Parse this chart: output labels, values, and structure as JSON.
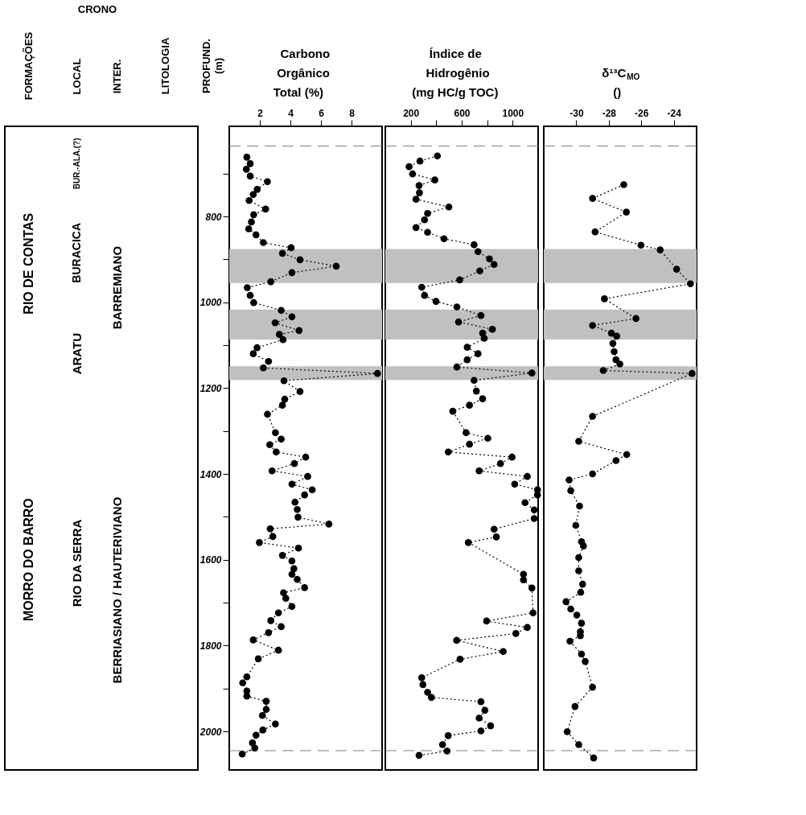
{
  "chart_data": [
    {
      "type": "other",
      "annotations": [
        "FORMAÇÕES",
        "CRONO",
        "LOCAL",
        "INTER.",
        "LITOLOGIA",
        "RIO DE CONTAS",
        "MORRO DO BARRO",
        "BUR.-ALA.(?)",
        "BURACICA",
        "ARATU",
        "RIO DA SERRA",
        "BARREMIANO",
        "BERRIASIANO / HAUTERIVIANO"
      ]
    },
    {
      "type": "line",
      "xlabel": "Carbono\nOrgânico\nTotal (%)",
      "xlim": [
        0,
        10
      ],
      "xticks": [
        2,
        4,
        6,
        8
      ],
      "ylim": [
        2090,
        590
      ],
      "ylabel": "PROFUND.\n(m)",
      "yticks": [
        {
          "value": 700,
          "label": null
        },
        800,
        {
          "value": 900,
          "label": null
        },
        1000,
        {
          "value": 1100,
          "label": null
        },
        1200,
        {
          "value": 1300,
          "label": null
        },
        1400,
        {
          "value": 1500,
          "label": null
        },
        1600,
        {
          "value": 1700,
          "label": null
        },
        1800,
        {
          "value": 1900,
          "label": null
        },
        2000
      ],
      "marker": "circle",
      "line_style": "dotted",
      "bands": [
        {
          "axis": "y",
          "from": 876,
          "to": 955,
          "color": "#c0c0c0"
        },
        {
          "axis": "y",
          "from": 1017,
          "to": 1087,
          "color": "#c0c0c0"
        },
        {
          "axis": "y",
          "from": 1149,
          "to": 1181,
          "color": "#c0c0c0"
        }
      ],
      "ref_lines": [
        {
          "axis": "y",
          "value": 636,
          "color": "#808080",
          "line_style": "dashed"
        },
        {
          "axis": "y",
          "value": 2045,
          "color": "#808080",
          "line_style": "dashed"
        }
      ],
      "series": [
        {
          "color": "#000000",
          "x": [
            1.15,
            1.37,
            1.12,
            1.37,
            2.5,
            1.83,
            1.57,
            1.3,
            2.38,
            1.6,
            1.45,
            1.27,
            1.75,
            2.23,
            4.05,
            3.48,
            4.63,
            7.0,
            4.1,
            2.72,
            1.18,
            1.37,
            1.6,
            3.4,
            4.1,
            3.0,
            4.57,
            3.28,
            3.52,
            1.82,
            1.57,
            2.57,
            2.23,
            9.7,
            3.58,
            4.63,
            3.63,
            3.48,
            2.5,
            3.02,
            3.4,
            2.65,
            3.07,
            5.0,
            4.26,
            2.8,
            5.13,
            4.1,
            5.43,
            4.93,
            4.3,
            4.45,
            4.5,
            6.52,
            2.68,
            2.85,
            1.97,
            4.53,
            3.48,
            4.1,
            4.23,
            4.1,
            4.45,
            4.93,
            3.55,
            3.7,
            4.1,
            3.22,
            2.72,
            3.4,
            2.57,
            1.57,
            3.22,
            1.9,
            1.15,
            0.88,
            1.15,
            1.15,
            2.42,
            2.42,
            2.17,
            3.02,
            2.2,
            1.75,
            1.52,
            1.67,
            0.85
          ],
          "values": [
            662,
            677,
            690,
            706,
            719,
            737,
            749,
            763,
            783,
            796,
            813,
            829,
            843,
            861,
            873,
            886,
            901,
            916,
            931,
            952,
            966,
            984,
            1001,
            1019,
            1034,
            1048,
            1066,
            1075,
            1087,
            1106,
            1120,
            1138,
            1153,
            1166,
            1183,
            1208,
            1226,
            1240,
            1261,
            1304,
            1319,
            1332,
            1349,
            1361,
            1376,
            1393,
            1406,
            1424,
            1437,
            1449,
            1466,
            1483,
            1501,
            1517,
            1528,
            1546,
            1560,
            1573,
            1590,
            1603,
            1621,
            1634,
            1646,
            1665,
            1677,
            1690,
            1709,
            1724,
            1742,
            1756,
            1770,
            1787,
            1811,
            1831,
            1873,
            1887,
            1906,
            1918,
            1930,
            1949,
            1963,
            1983,
            1997,
            2009,
            2027,
            2039,
            2053
          ]
        }
      ]
    },
    {
      "type": "line",
      "xlabel": "Índice de\nHidrogênio\n(mg HC/g TOC)",
      "xlim": [
        0,
        1200
      ],
      "xticks": [
        200,
        {
          "value": 400,
          "label": null
        },
        600,
        {
          "value": 800,
          "label": null
        },
        1000
      ],
      "ylim": [
        2090,
        590
      ],
      "tick_labels": "x",
      "marker": "circle",
      "line_style": "dotted",
      "bands": [
        {
          "axis": "y",
          "from": 876,
          "to": 955,
          "color": "#c0c0c0"
        },
        {
          "axis": "y",
          "from": 1017,
          "to": 1087,
          "color": "#c0c0c0"
        },
        {
          "axis": "y",
          "from": 1149,
          "to": 1181,
          "color": "#c0c0c0"
        }
      ],
      "ref_lines": [
        {
          "axis": "y",
          "value": 636,
          "color": "#808080",
          "line_style": "dashed"
        },
        {
          "axis": "y",
          "value": 2045,
          "color": "#808080",
          "line_style": "dashed"
        }
      ],
      "series": [
        {
          "color": "#000000",
          "x": [
            409,
            272,
            187,
            214,
            389,
            265,
            268,
            241,
            499,
            332,
            308,
            241,
            332,
            461,
            697,
            728,
            818,
            854,
            742,
            584,
            286,
            308,
            398,
            562,
            751,
            575,
            841,
            764,
            777,
            643,
            728,
            643,
            562,
            1151,
            697,
            715,
            764,
            661,
            530,
            634,
            805,
            661,
            494,
            995,
            904,
            737,
            1115,
            1016,
            1195,
            1195,
            1097,
            1169,
            1169,
            854,
            872,
            652,
            1085,
            1085,
            1151,
            1160,
            795,
            1115,
            1025,
            560,
            926,
            587,
            286,
            295,
            332,
            362,
            751,
            782,
            737,
            827,
            751,
            494,
            449,
            485,
            265
          ],
          "values": [
            659,
            671,
            684,
            701,
            715,
            728,
            745,
            760,
            778,
            793,
            808,
            826,
            837,
            852,
            866,
            882,
            899,
            912,
            927,
            948,
            965,
            984,
            998,
            1011,
            1031,
            1046,
            1063,
            1072,
            1084,
            1105,
            1120,
            1134,
            1151,
            1165,
            1182,
            1207,
            1225,
            1240,
            1254,
            1304,
            1317,
            1331,
            1349,
            1361,
            1376,
            1393,
            1406,
            1424,
            1437,
            1449,
            1467,
            1484,
            1504,
            1529,
            1547,
            1560,
            1634,
            1647,
            1666,
            1724,
            1743,
            1758,
            1772,
            1788,
            1814,
            1832,
            1875,
            1891,
            1909,
            1921,
            1931,
            1951,
            1969,
            1987,
            1999,
            2010,
            2031,
            2046,
            2056
          ]
        }
      ]
    },
    {
      "type": "line",
      "xlabel": "δ¹³C$_{MO}$\n()",
      "xlim": [
        -32,
        -22.6
      ],
      "xticks": [
        -30,
        -28,
        -26,
        -24
      ],
      "ylim": [
        2090,
        590
      ],
      "tick_labels": "x",
      "marker": "circle",
      "line_style": "dotted",
      "bands": [
        {
          "axis": "y",
          "from": 876,
          "to": 955,
          "color": "#c0c0c0"
        },
        {
          "axis": "y",
          "from": 1017,
          "to": 1087,
          "color": "#c0c0c0"
        },
        {
          "axis": "y",
          "from": 1149,
          "to": 1181,
          "color": "#c0c0c0"
        }
      ],
      "ref_lines": [
        {
          "axis": "y",
          "value": 636,
          "color": "#808080",
          "line_style": "dashed"
        },
        {
          "axis": "y",
          "value": 2045,
          "color": "#808080",
          "line_style": "dashed"
        }
      ],
      "series": [
        {
          "color": "#000000",
          "x": [
            -27.08,
            -29.0,
            -26.92,
            -28.84,
            -26.02,
            -24.84,
            -23.83,
            -22.98,
            -28.27,
            -26.33,
            -29.0,
            -27.84,
            -27.51,
            -27.75,
            -27.67,
            -27.56,
            -27.32,
            -28.34,
            -22.88,
            -29.0,
            -29.85,
            -26.9,
            -27.56,
            -29.0,
            -30.44,
            -30.34,
            -29.8,
            -30.03,
            -29.68,
            -29.56,
            -29.85,
            -29.85,
            -29.61,
            -29.73,
            -30.63,
            -30.34,
            -29.97,
            -29.68,
            -29.75,
            -29.75,
            -30.39,
            -29.68,
            -29.45,
            -29.0,
            -30.08,
            -30.56,
            -29.85,
            -28.93
          ],
          "values": [
            726,
            758,
            790,
            836,
            867,
            878,
            923,
            957,
            992,
            1038,
            1054,
            1072,
            1079,
            1096,
            1115,
            1134,
            1144,
            1159,
            1166,
            1266,
            1324,
            1355,
            1369,
            1400,
            1414,
            1439,
            1475,
            1520,
            1558,
            1568,
            1595,
            1626,
            1657,
            1676,
            1698,
            1715,
            1729,
            1748,
            1768,
            1777,
            1790,
            1820,
            1837,
            1897,
            1942,
            2001,
            2031,
            2062
          ]
        }
      ]
    }
  ]
}
